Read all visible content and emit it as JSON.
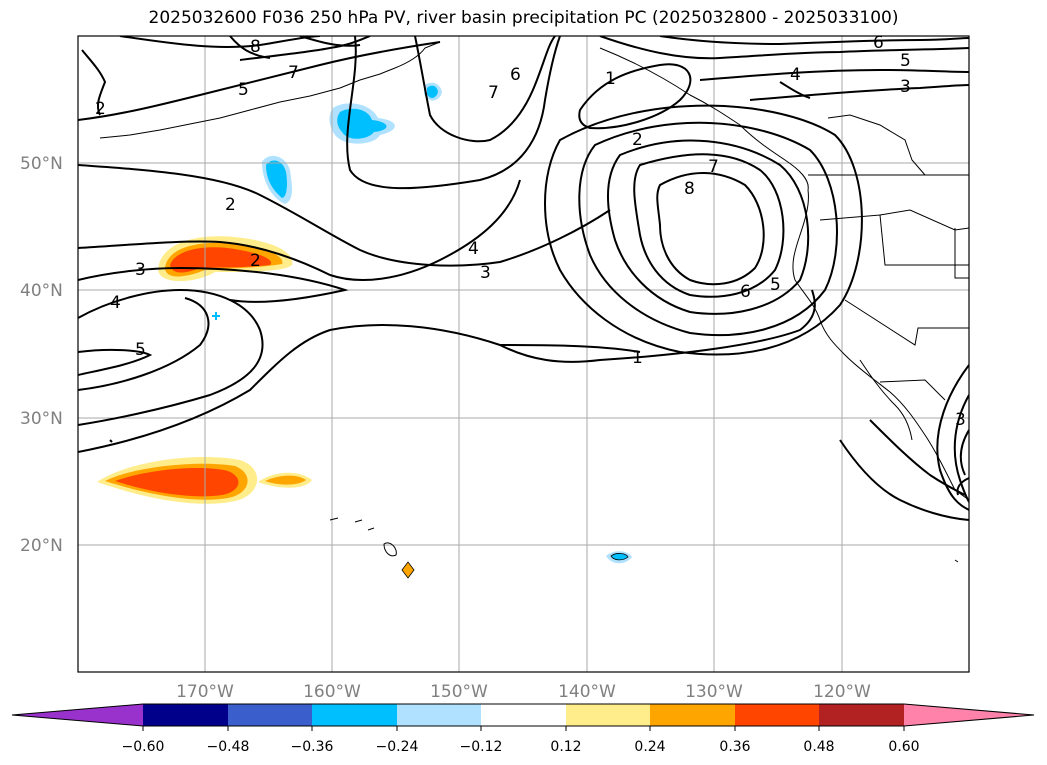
{
  "title": "2025032600 F036 250 hPa PV, river basin precipitation PC (2025032800 - 2025033100)",
  "map": {
    "lat_labels": [
      "50°N",
      "40°N",
      "30°N",
      "20°N"
    ],
    "lon_labels": [
      "170°W",
      "160°W",
      "150°W",
      "140°W",
      "130°W",
      "120°W"
    ]
  },
  "contour_labels": [
    "8",
    "7",
    "5",
    "2",
    "6",
    "7",
    "1",
    "6",
    "5",
    "4",
    "3",
    "2",
    "7",
    "8",
    "2",
    "3",
    "2",
    "4",
    "3",
    "4",
    "5",
    "6",
    "5",
    "1",
    "3"
  ],
  "colorbar": {
    "ticks": [
      "−0.60",
      "−0.48",
      "−0.36",
      "−0.24",
      "−0.12",
      "0.12",
      "0.24",
      "0.36",
      "0.48",
      "0.60"
    ],
    "colors": [
      "#9932cc",
      "#00008b",
      "#3a5fcd",
      "#00bfff",
      "#b0e2ff",
      "#ffffff",
      "#ffec8b",
      "#ffa500",
      "#ff4500",
      "#b22222",
      "#ff82ab"
    ]
  }
}
